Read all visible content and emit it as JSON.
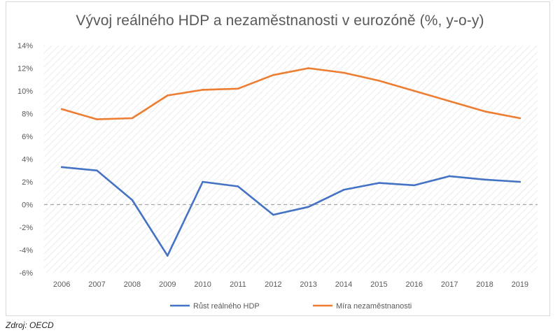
{
  "chart_data": {
    "type": "line",
    "title": "Vývoj reálného HDP a nezaměstnanosti v eurozóně (%, y-o-y)",
    "xlabel": "",
    "ylabel": "",
    "x": [
      "2006",
      "2007",
      "2008",
      "2009",
      "2010",
      "2011",
      "2012",
      "2013",
      "2014",
      "2015",
      "2016",
      "2017",
      "2018",
      "2019"
    ],
    "ylim": [
      -6,
      14
    ],
    "ytick_values": [
      -6,
      -4,
      -2,
      0,
      2,
      4,
      6,
      8,
      10,
      12,
      14
    ],
    "ytick_labels": [
      "-6%",
      "-4%",
      "-2%",
      "0%",
      "2%",
      "4%",
      "6%",
      "8%",
      "10%",
      "12%",
      "14%"
    ],
    "grid": false,
    "zero_line": "dashed",
    "legend_position": "bottom",
    "series": [
      {
        "name": "Růst reálného HDP",
        "color": "#4472c4",
        "values": [
          3.3,
          3.0,
          0.4,
          -4.5,
          2.0,
          1.6,
          -0.9,
          -0.2,
          1.3,
          1.9,
          1.7,
          2.5,
          2.2,
          2.0
        ]
      },
      {
        "name": "Míra nezaměstnanosti",
        "color": "#ed7d31",
        "values": [
          8.4,
          7.5,
          7.6,
          9.6,
          10.1,
          10.2,
          11.4,
          12.0,
          11.6,
          10.9,
          10.0,
          9.1,
          8.2,
          7.6
        ]
      }
    ]
  },
  "source": "Zdroj: OECD"
}
